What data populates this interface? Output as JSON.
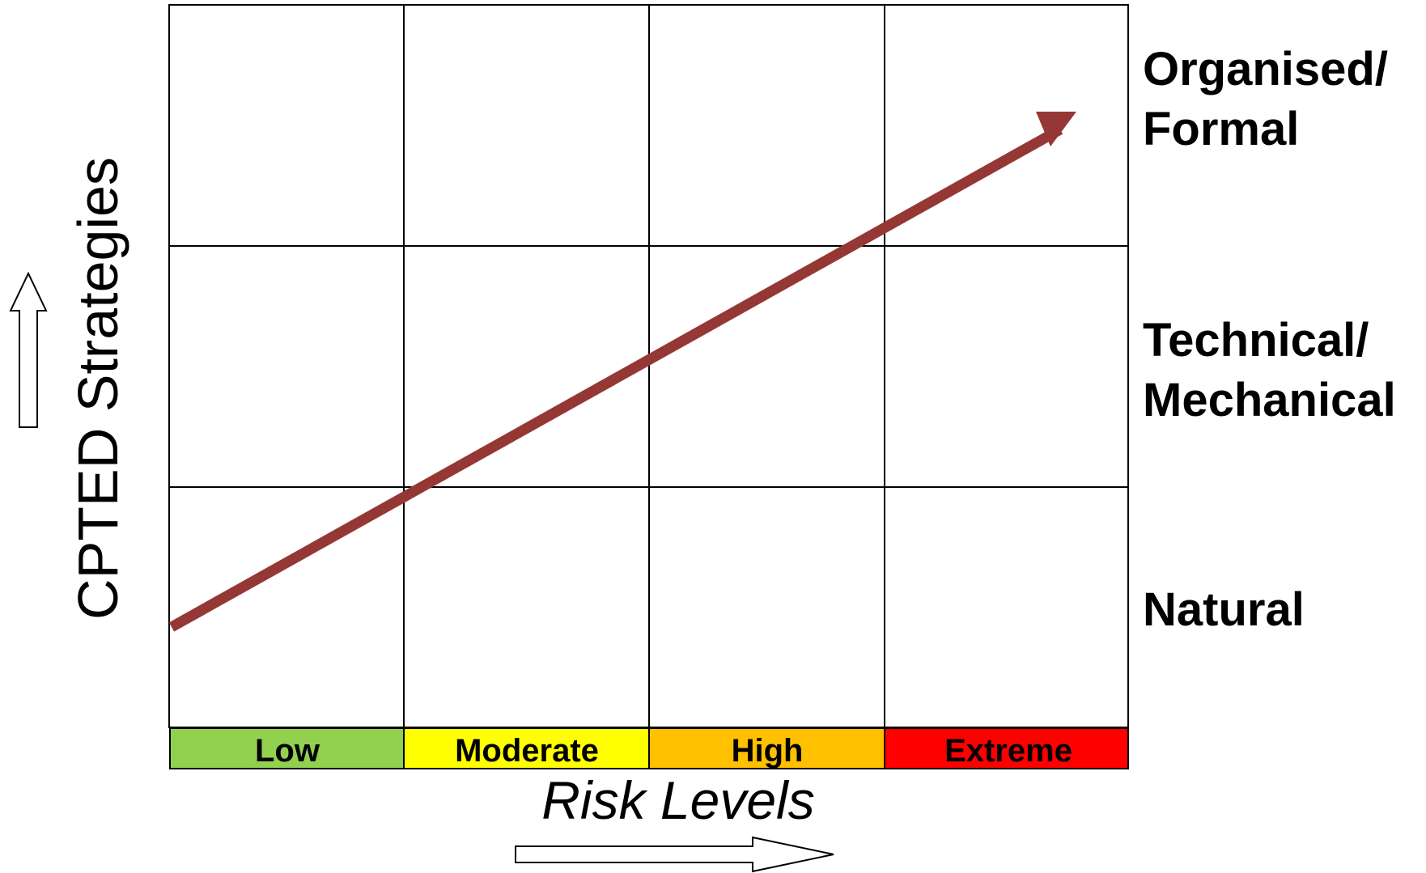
{
  "diagram": {
    "y_axis_title": "CPTED Strategies",
    "x_axis_title": "Risk Levels",
    "strategies": [
      {
        "lines": [
          "Organised/",
          "Formal"
        ]
      },
      {
        "lines": [
          "Technical/",
          "Mechanical"
        ]
      },
      {
        "lines": [
          "Natural"
        ]
      }
    ],
    "risk_levels": [
      {
        "label": "Low",
        "color": "#92d050"
      },
      {
        "label": "Moderate",
        "color": "#ffff00"
      },
      {
        "label": "High",
        "color": "#ffc000"
      },
      {
        "label": "Extreme",
        "color": "#ff0000"
      }
    ],
    "trend_arrow_color": "#953735",
    "grid_line_color": "#000000"
  }
}
